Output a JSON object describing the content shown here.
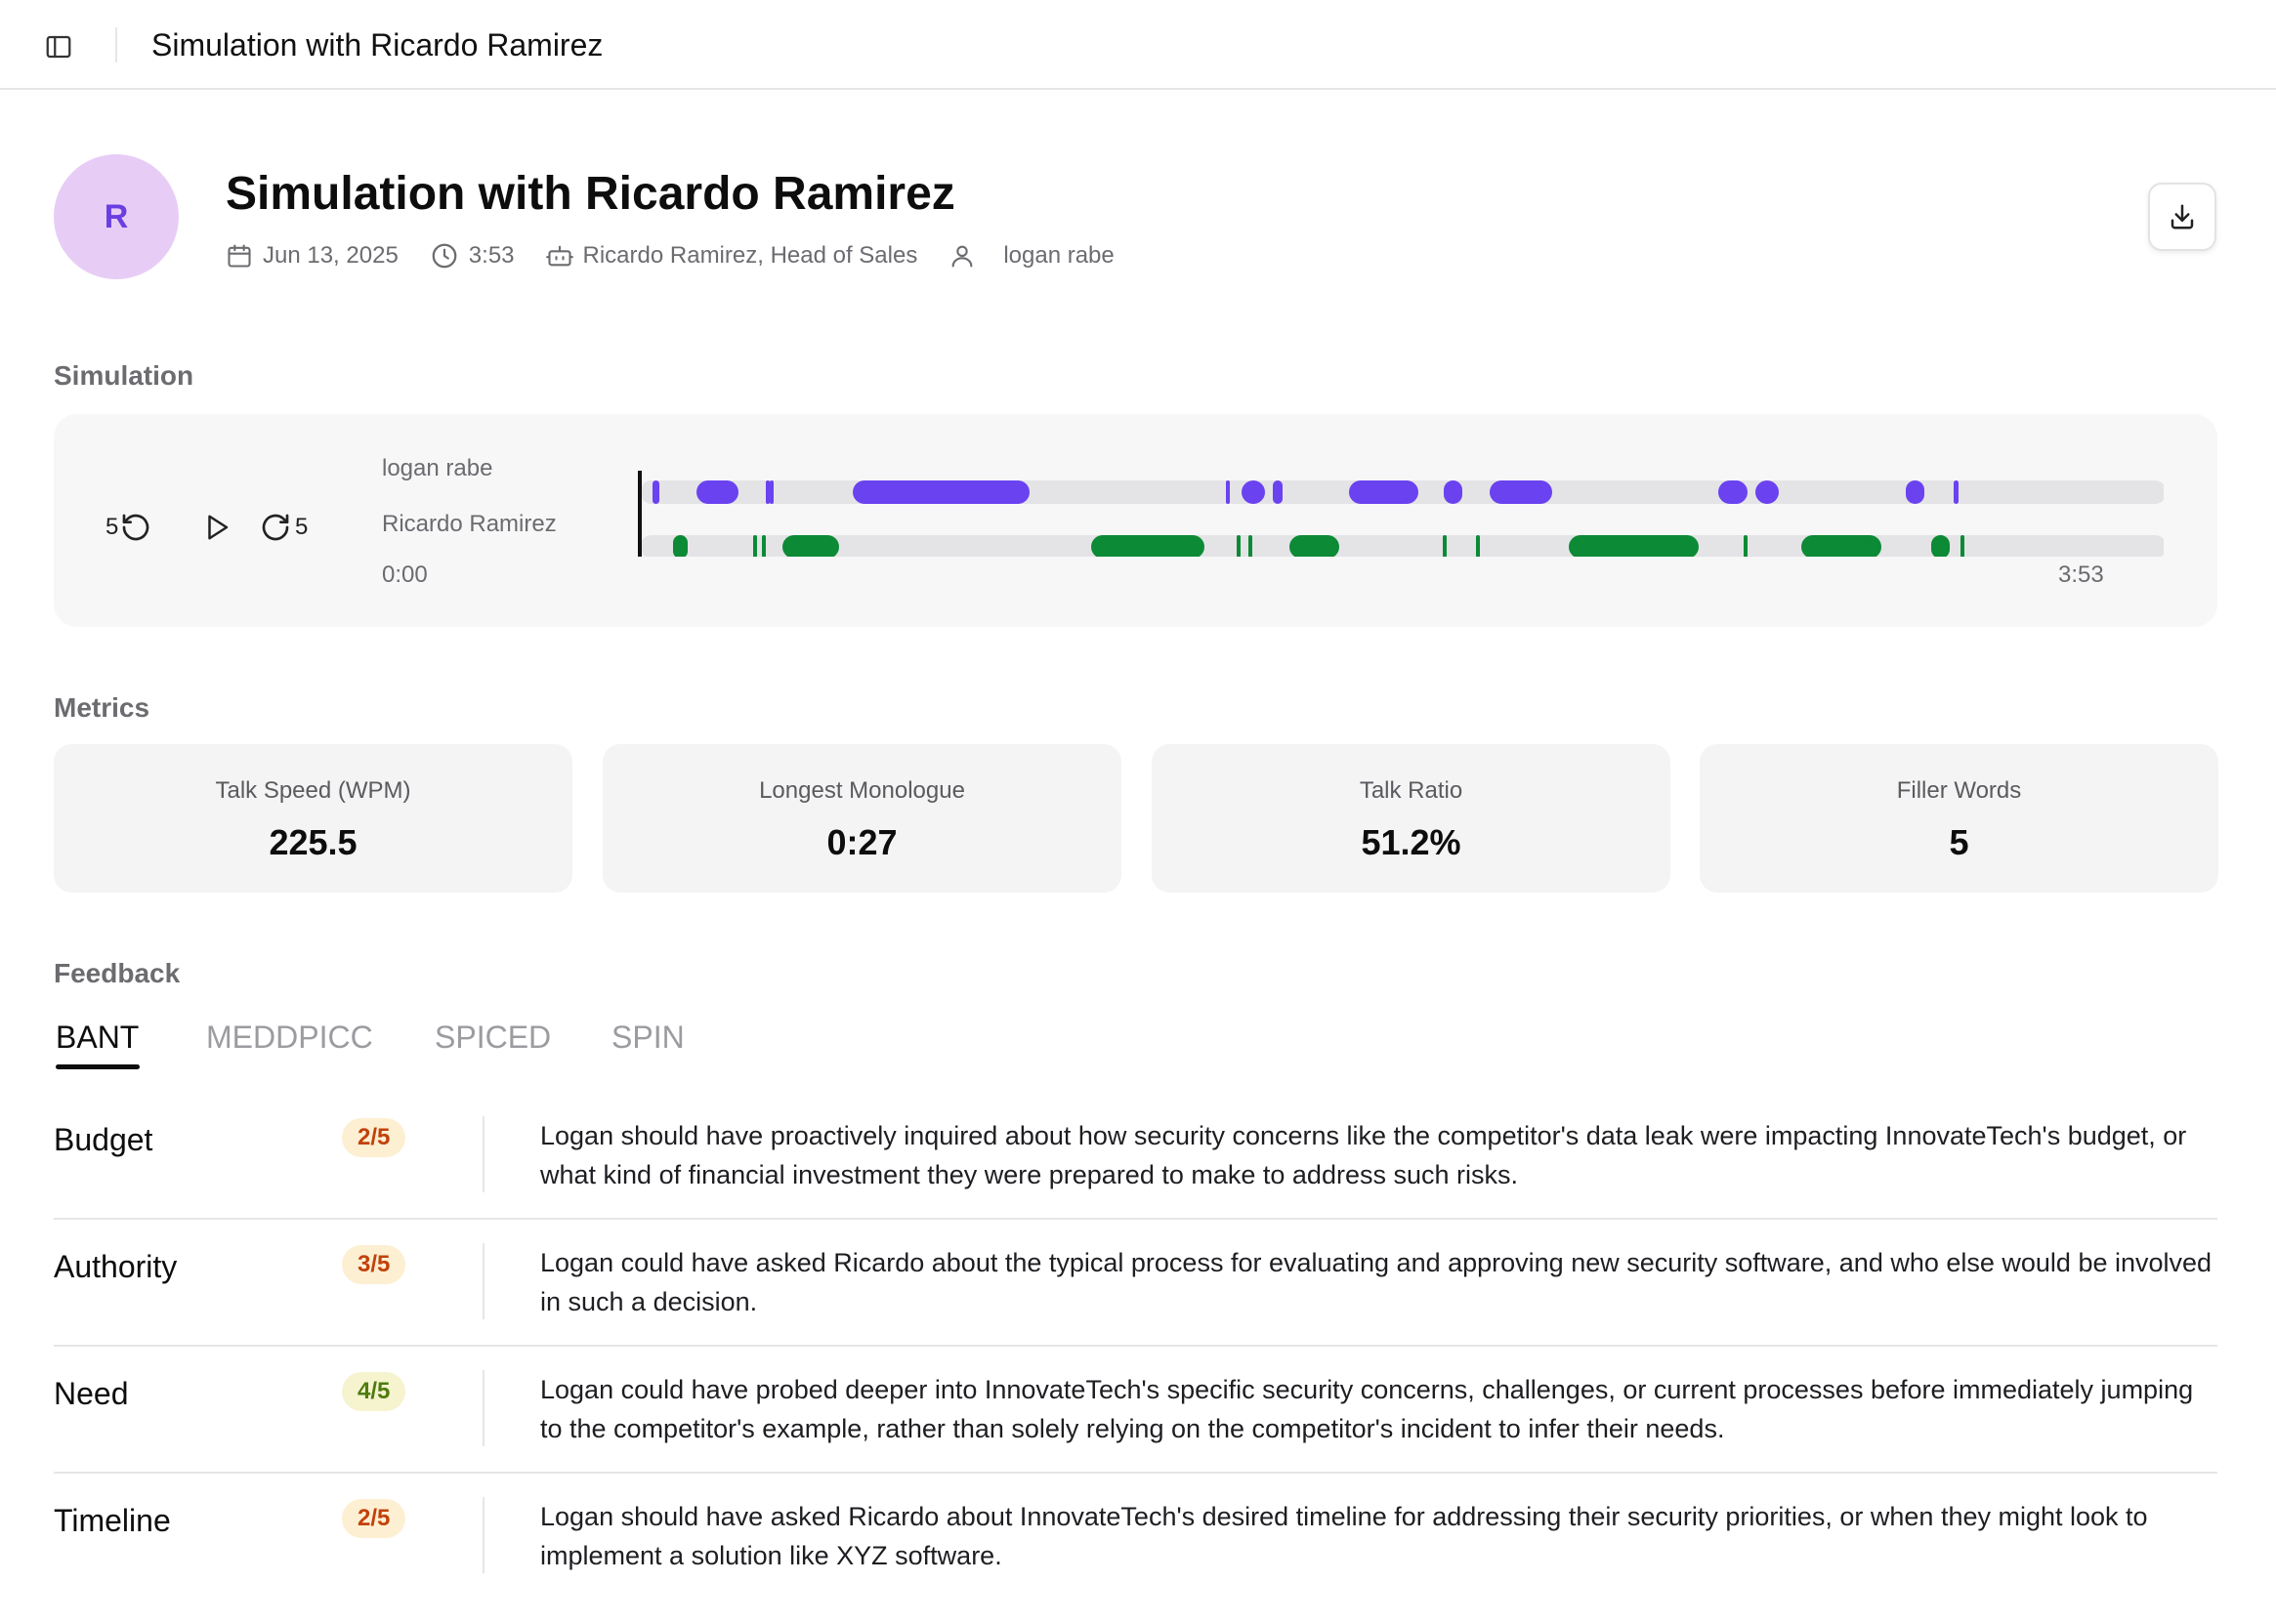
{
  "topbar": {
    "title": "Simulation with Ricardo Ramirez"
  },
  "header": {
    "avatar_initial": "R",
    "title": "Simulation with Ricardo Ramirez",
    "date": "Jun 13, 2025",
    "duration": "3:53",
    "persona": "Ricardo Ramirez, Head of Sales",
    "user": "logan rabe"
  },
  "simulation": {
    "heading": "Simulation",
    "skip_back": "5",
    "skip_forward": "5",
    "start_time": "0:00",
    "end_time": "3:53",
    "tracks": [
      {
        "speaker": "logan rabe",
        "color": "#6a42f0"
      },
      {
        "speaker": "Ricardo Ramirez",
        "color": "#0c8a35"
      }
    ]
  },
  "metrics": {
    "heading": "Metrics",
    "items": [
      {
        "label": "Talk Speed (WPM)",
        "value": "225.5"
      },
      {
        "label": "Longest Monologue",
        "value": "0:27"
      },
      {
        "label": "Talk Ratio",
        "value": "51.2%"
      },
      {
        "label": "Filler Words",
        "value": "5"
      }
    ]
  },
  "feedback": {
    "heading": "Feedback",
    "tabs": [
      "BANT",
      "MEDDPICC",
      "SPICED",
      "SPIN"
    ],
    "active_tab": "BANT",
    "rows": [
      {
        "criterion": "Budget",
        "score": "2/5",
        "score_color": "#c2410c",
        "score_bg": "#fdefd2",
        "text": "Logan should have proactively inquired about how security concerns like the competitor's data leak were impacting InnovateTech's budget, or what kind of financial investment they were prepared to make to address such risks."
      },
      {
        "criterion": "Authority",
        "score": "3/5",
        "score_color": "#c2410c",
        "score_bg": "#fdefd2",
        "text": "Logan could have asked Ricardo about the typical process for evaluating and approving new security software, and who else would be involved in such a decision."
      },
      {
        "criterion": "Need",
        "score": "4/5",
        "score_color": "#4d7c0f",
        "score_bg": "#f6f3cf",
        "text": "Logan could have probed deeper into InnovateTech's specific security concerns, challenges, or current processes before immediately jumping to the competitor's example, rather than solely relying on the competitor's incident to infer their needs."
      },
      {
        "criterion": "Timeline",
        "score": "2/5",
        "score_color": "#c2410c",
        "score_bg": "#fdefd2",
        "text": "Logan should have asked Ricardo about InnovateTech's desired timeline for addressing their security priorities, or when they might look to implement a solution like XYZ software."
      }
    ]
  }
}
